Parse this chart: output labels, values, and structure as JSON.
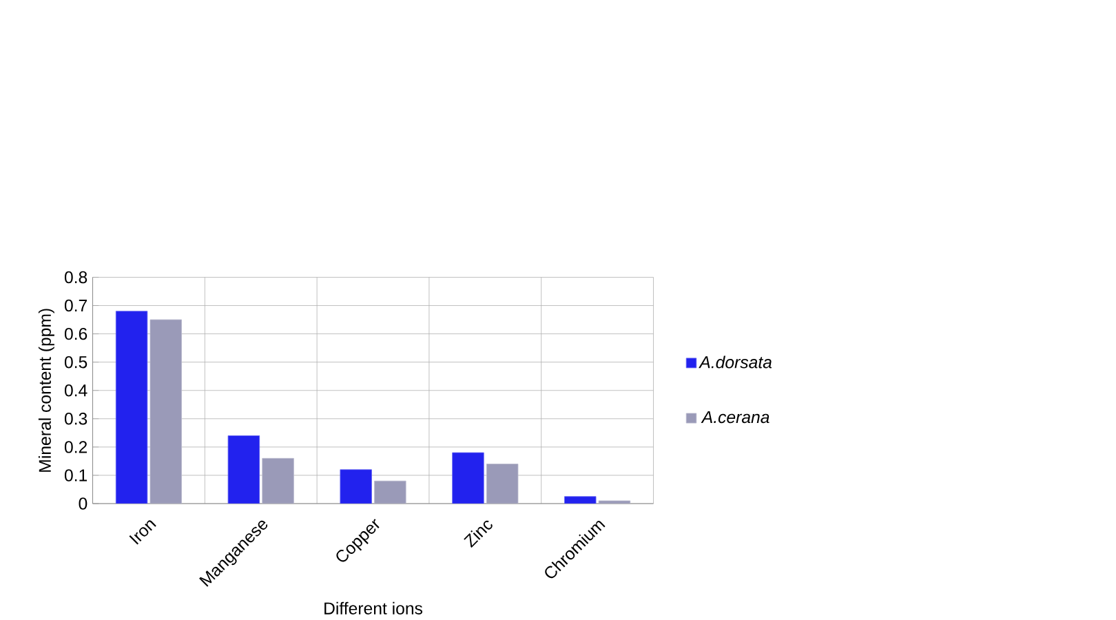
{
  "chart_data": {
    "type": "bar",
    "xlabel": "Different ions",
    "ylabel": "Mineral content (ppm)",
    "categories": [
      "Iron",
      "Manganese",
      "Copper",
      "Zinc",
      "Chromium"
    ],
    "series": [
      {
        "name": "A.dorsata",
        "color": "#2222ee",
        "values": [
          0.68,
          0.24,
          0.12,
          0.18,
          0.025
        ]
      },
      {
        "name": "A.cerana",
        "color": "#9a9ab8",
        "values": [
          0.65,
          0.16,
          0.08,
          0.14,
          0.01
        ]
      }
    ],
    "ylim": [
      0,
      0.8
    ],
    "yticks": [
      0,
      0.1,
      0.2,
      0.3,
      0.4,
      0.5,
      0.6,
      0.7,
      0.8
    ],
    "grid": true,
    "legend": "right"
  }
}
